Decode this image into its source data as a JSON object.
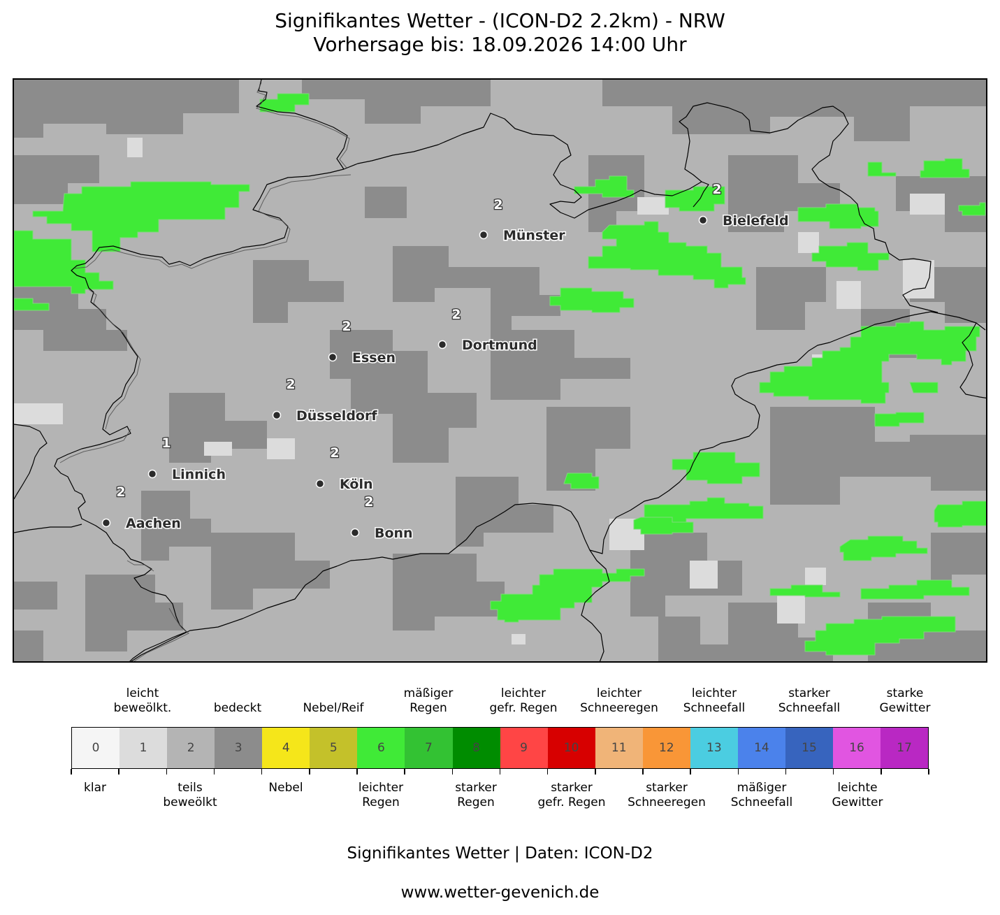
{
  "title": {
    "line1": "Signifikantes Wetter - (ICON-D2 2.2km) - NRW",
    "line2": "Vorhersage bis: 18.09.2026 14:00 Uhr"
  },
  "map": {
    "colors": {
      "teils_bewoelkt": "#b4b4b4",
      "bedeckt": "#8c8c8c",
      "leicht_bewoelkt": "#dcdcdc",
      "leichter_regen": "#40ea37",
      "border": "#000000"
    },
    "cities": [
      {
        "name": "Münster",
        "dot": [
          690,
          334
        ]
      },
      {
        "name": "Bielefeld",
        "dot": [
          1004,
          313
        ]
      },
      {
        "name": "Dortmund",
        "dot": [
          631,
          491
        ]
      },
      {
        "name": "Essen",
        "dot": [
          474,
          509
        ]
      },
      {
        "name": "Düsseldorf",
        "dot": [
          394,
          592
        ]
      },
      {
        "name": "Linnich",
        "dot": [
          216,
          676
        ]
      },
      {
        "name": "Köln",
        "dot": [
          456,
          690
        ]
      },
      {
        "name": "Aachen",
        "dot": [
          150,
          746
        ]
      },
      {
        "name": "Bonn",
        "dot": [
          506,
          760
        ]
      }
    ],
    "codes": [
      {
        "value": "2",
        "pos": [
          711,
          290
        ]
      },
      {
        "value": "2",
        "pos": [
          1024,
          268
        ]
      },
      {
        "value": "2",
        "pos": [
          651,
          447
        ]
      },
      {
        "value": "2",
        "pos": [
          494,
          464
        ]
      },
      {
        "value": "2",
        "pos": [
          414,
          547
        ]
      },
      {
        "value": "1",
        "pos": [
          236,
          631
        ]
      },
      {
        "value": "2",
        "pos": [
          477,
          645
        ]
      },
      {
        "value": "2",
        "pos": [
          171,
          701
        ]
      },
      {
        "value": "2",
        "pos": [
          526,
          715
        ]
      }
    ]
  },
  "legend": {
    "top_labels": [
      [
        "leicht",
        "beweölkt."
      ],
      [
        "bedeckt"
      ],
      [
        "Nebel/Reif"
      ],
      [
        "mäßiger",
        "Regen"
      ],
      [
        "leichter",
        "gefr. Regen"
      ],
      [
        "leichter",
        "Schneeregen"
      ],
      [
        "leichter",
        "Schneefall"
      ],
      [
        "starker",
        "Schneefall"
      ],
      [
        "starke",
        "Gewitter"
      ]
    ],
    "bottom_labels": [
      [
        "klar"
      ],
      [
        "teils",
        "beweölkt"
      ],
      [
        "Nebel"
      ],
      [
        "leichter",
        "Regen"
      ],
      [
        "starker",
        "Regen"
      ],
      [
        "starker",
        "gefr. Regen"
      ],
      [
        "starker",
        "Schneeregen"
      ],
      [
        "mäßiger",
        "Schneefall"
      ],
      [
        "leichte",
        "Gewitter"
      ]
    ],
    "codes": [
      "0",
      "1",
      "2",
      "3",
      "4",
      "5",
      "6",
      "7",
      "8",
      "9",
      "10",
      "11",
      "12",
      "13",
      "14",
      "15",
      "16",
      "17"
    ],
    "colors": [
      "#f5f5f5",
      "#dcdcdc",
      "#b4b4b4",
      "#8c8c8c",
      "#f5e61a",
      "#c4c12a",
      "#40ea37",
      "#33c233",
      "#008c00",
      "#ff4545",
      "#d70000",
      "#f0b478",
      "#f99637",
      "#4bcde1",
      "#4b82eb",
      "#3764be",
      "#e155e1",
      "#b928c3"
    ]
  },
  "footer": {
    "line1": "Signifikantes Wetter | Daten: ICON-D2",
    "line2": "www.wetter-gevenich.de"
  }
}
